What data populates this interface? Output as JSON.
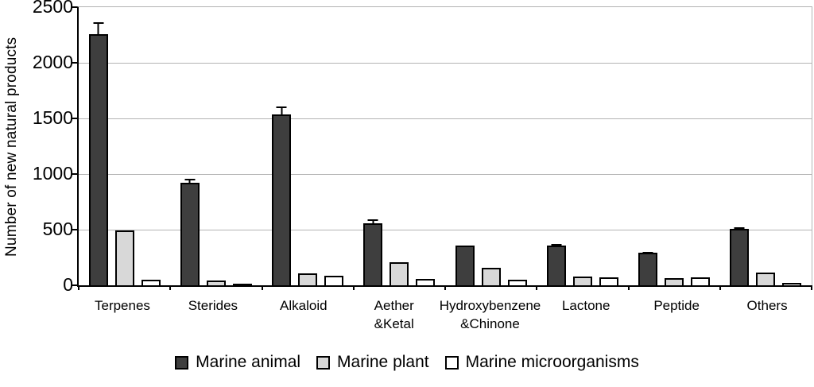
{
  "chart_data": {
    "type": "bar",
    "title": "",
    "ylabel": "Number of new natural products",
    "xlabel": "",
    "ylim": [
      0,
      2500
    ],
    "yticks": [
      0,
      500,
      1000,
      1500,
      2000,
      2500
    ],
    "grid": true,
    "legend_position": "bottom",
    "error_bars": true,
    "categories": [
      "Terpenes",
      "Sterides",
      "Alkaloid",
      "Aether\n&Ketal",
      "Hydroxybenzene\n&Chinone",
      "Lactone",
      "Peptide",
      "Others"
    ],
    "series": [
      {
        "name": "Marine animal",
        "color": "#3e3e3e",
        "values": [
          2260,
          925,
          1535,
          560,
          355,
          360,
          295,
          510
        ],
        "errors": [
          120,
          45,
          90,
          45,
          12,
          28,
          20,
          25
        ]
      },
      {
        "name": "Marine plant",
        "color": "#d8d8d8",
        "values": [
          490,
          45,
          110,
          205,
          155,
          80,
          65,
          115
        ],
        "errors": [
          20,
          5,
          5,
          12,
          15,
          10,
          5,
          12
        ]
      },
      {
        "name": "Marine microorganisms",
        "color": "#ffffff",
        "values": [
          50,
          8,
          85,
          55,
          50,
          68,
          68,
          20
        ],
        "errors": [
          10,
          4,
          10,
          0,
          0,
          0,
          0,
          8
        ]
      }
    ]
  },
  "colors": {
    "axis": "#000000",
    "gridline": "#b3b3b3",
    "bar_border": "#000000",
    "background": "#ffffff"
  }
}
